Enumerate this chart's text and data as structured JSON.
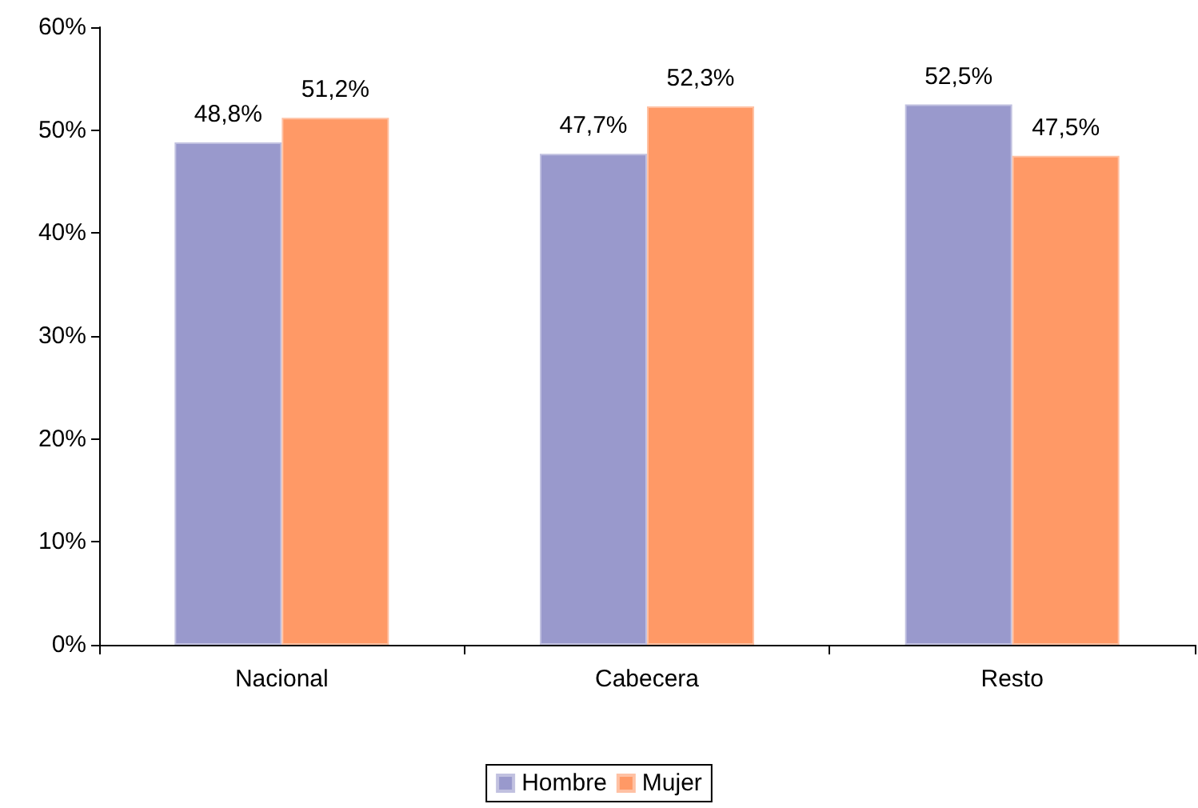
{
  "chart_data": {
    "type": "bar",
    "categories": [
      "Nacional",
      "Cabecera",
      "Resto"
    ],
    "series": [
      {
        "name": "Hombre",
        "color": "#9999cc",
        "values": [
          48.8,
          47.7,
          52.5
        ],
        "value_labels": [
          "48,8%",
          "47,7%",
          "52,5%"
        ]
      },
      {
        "name": "Mujer",
        "color": "#ff9966",
        "values": [
          51.2,
          52.3,
          47.5
        ],
        "value_labels": [
          "51,2%",
          "52,3%",
          "47,5%"
        ]
      }
    ],
    "ylim": [
      0,
      60
    ],
    "yticks": [
      {
        "value": 0,
        "label": "0%"
      },
      {
        "value": 10,
        "label": "10%"
      },
      {
        "value": 20,
        "label": "20%"
      },
      {
        "value": 30,
        "label": "30%"
      },
      {
        "value": 40,
        "label": "40%"
      },
      {
        "value": 50,
        "label": "50%"
      },
      {
        "value": 60,
        "label": "60%"
      }
    ],
    "grid": false,
    "legend": "bottom"
  }
}
